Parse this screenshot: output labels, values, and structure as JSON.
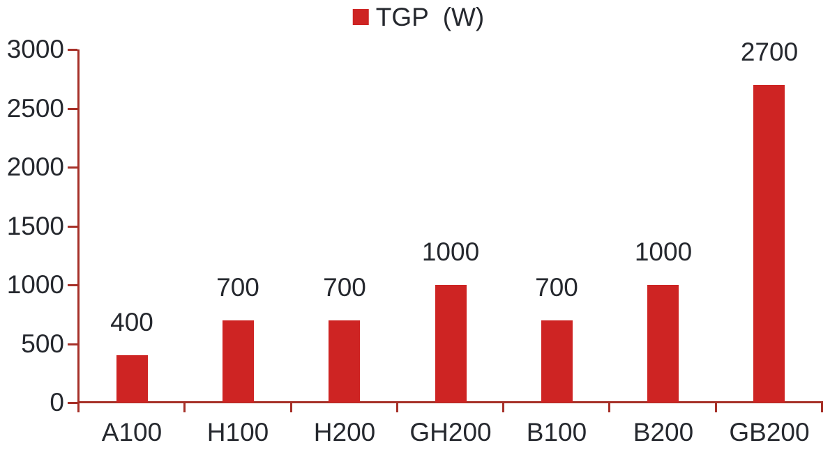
{
  "chart_data": {
    "type": "bar",
    "title": "",
    "legend": {
      "label": "TGP  (W)",
      "position": "top-center"
    },
    "categories": [
      "A100",
      "H100",
      "H200",
      "GH200",
      "B100",
      "B200",
      "GB200"
    ],
    "series": [
      {
        "name": "TGP (W)",
        "values": [
          400,
          700,
          700,
          1000,
          700,
          1000,
          2700
        ]
      }
    ],
    "data_labels": [
      "400",
      "700",
      "700",
      "1000",
      "700",
      "1000",
      "2700"
    ],
    "xlabel": "",
    "ylabel": "",
    "ylim": [
      0,
      3000
    ],
    "yticks": [
      "0",
      "500",
      "1000",
      "1500",
      "2000",
      "2500",
      "3000"
    ],
    "grid": "off",
    "legend_position": "top-center",
    "colors": {
      "bar": "#CE2423",
      "axis": "#A63028",
      "text": "#25282E",
      "background": "#FFFFFF"
    }
  }
}
